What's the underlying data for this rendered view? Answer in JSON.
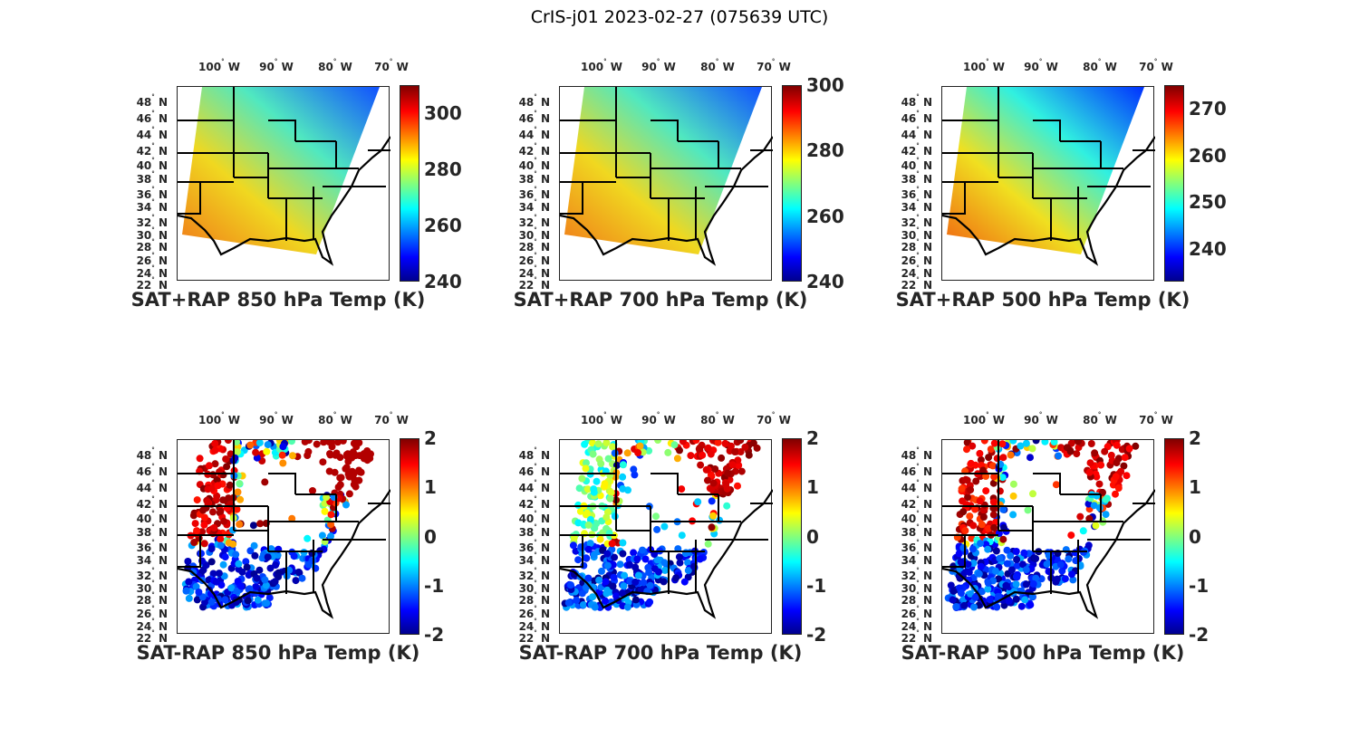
{
  "figure_title": "CrIS-j01 2023-02-27 (075639 UTC)",
  "lon_labels": [
    "100",
    "90",
    "80",
    "70"
  ],
  "lon_hemisphere": "W",
  "lat_labels": [
    "48",
    "46",
    "44",
    "42",
    "40",
    "38",
    "36",
    "34",
    "32",
    "30",
    "28",
    "26",
    "24",
    "22"
  ],
  "lat_hemisphere": "N",
  "degree_symbol": "°",
  "colormap": "jet",
  "panels": [
    {
      "title": "SAT+RAP 850 hPa Temp (K)",
      "type": "field",
      "clim": [
        240,
        310
      ],
      "colorbar_ticks": [
        "300",
        "280",
        "260",
        "240"
      ],
      "tick_values": [
        300,
        280,
        260,
        240
      ]
    },
    {
      "title": "SAT+RAP 700 hPa Temp (K)",
      "type": "field",
      "clim": [
        240,
        300
      ],
      "colorbar_ticks": [
        "300",
        "280",
        "260",
        "240"
      ],
      "tick_values": [
        300,
        280,
        260,
        240
      ]
    },
    {
      "title": "SAT+RAP 500 hPa Temp (K)",
      "type": "field",
      "clim": [
        233,
        275
      ],
      "colorbar_ticks": [
        "270",
        "260",
        "250",
        "240"
      ],
      "tick_values": [
        270,
        260,
        250,
        240
      ]
    },
    {
      "title": "SAT-RAP 850 hPa Temp (K)",
      "type": "difference",
      "clim": [
        -2,
        2
      ],
      "colorbar_ticks": [
        "2",
        "1",
        "0",
        "-1",
        "-2"
      ],
      "tick_values": [
        2,
        1,
        0,
        -1,
        -2
      ]
    },
    {
      "title": "SAT-RAP 700 hPa Temp (K)",
      "type": "difference",
      "clim": [
        -2,
        2
      ],
      "colorbar_ticks": [
        "2",
        "1",
        "0",
        "-1",
        "-2"
      ],
      "tick_values": [
        2,
        1,
        0,
        -1,
        -2
      ]
    },
    {
      "title": "SAT-RAP 500 hPa Temp (K)",
      "type": "difference",
      "clim": [
        -2,
        2
      ],
      "colorbar_ticks": [
        "2",
        "1",
        "0",
        "-1",
        "-2"
      ],
      "tick_values": [
        2,
        1,
        0,
        -1,
        -2
      ]
    }
  ]
}
